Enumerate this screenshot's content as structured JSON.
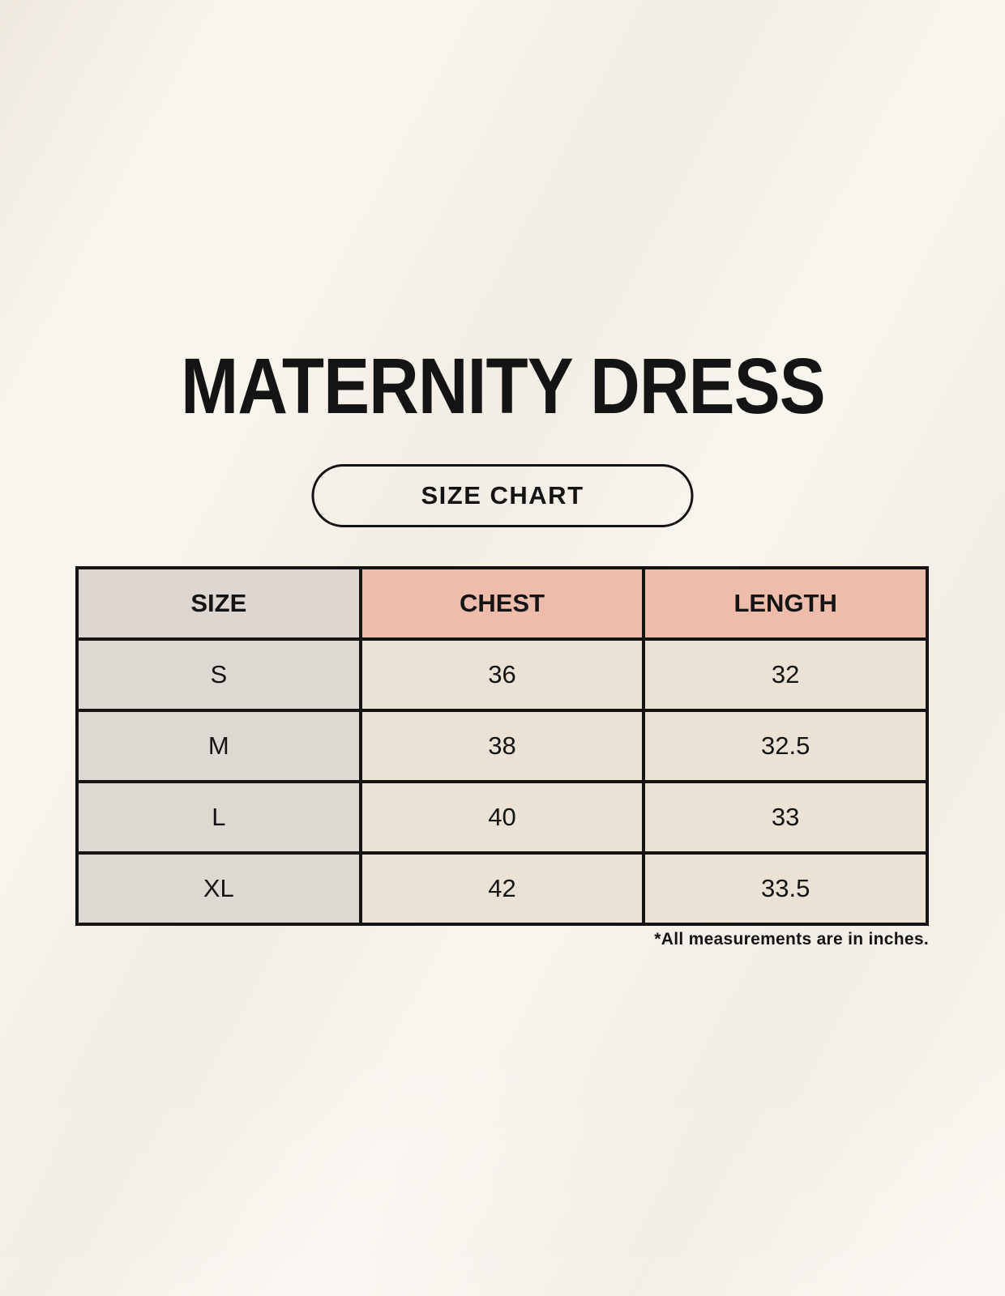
{
  "header": {
    "title": "MATERNITY DRESS",
    "badge": "SIZE CHART"
  },
  "footnote": "*All measurements are in inches.",
  "colors": {
    "background": "#f8f4ee",
    "text": "#141414",
    "table_border": "#141414",
    "header_size_bg": "#ded7d1",
    "header_accent_bg": "#eebcab",
    "size_col_bg": "#ded8d2",
    "data_cell_bg": "#e9e2d5"
  },
  "chart_data": {
    "type": "table",
    "title": "MATERNITY DRESS",
    "subtitle": "SIZE CHART",
    "units": "inches",
    "columns": [
      "SIZE",
      "CHEST",
      "LENGTH"
    ],
    "rows": [
      {
        "size": "S",
        "chest": "36",
        "length": "32"
      },
      {
        "size": "M",
        "chest": "38",
        "length": "32.5"
      },
      {
        "size": "L",
        "chest": "40",
        "length": "33"
      },
      {
        "size": "XL",
        "chest": "42",
        "length": "33.5"
      }
    ],
    "note": "*All measurements are in inches."
  }
}
